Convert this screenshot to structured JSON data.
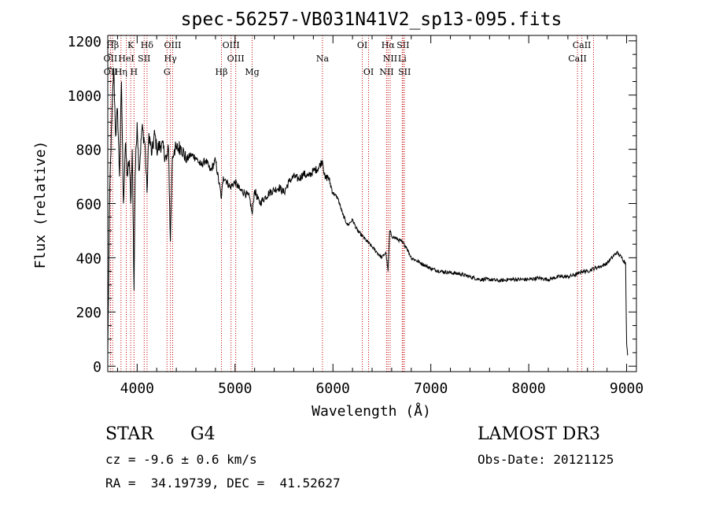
{
  "chart_data": {
    "type": "line",
    "title": "spec-56257-VB031N41V2_sp13-095.fits",
    "xlabel": "Wavelength (Å)",
    "ylabel": "Flux (relative)",
    "xlim": [
      3700,
      9100
    ],
    "ylim": [
      -20,
      1220
    ],
    "x_ticks": [
      4000,
      5000,
      6000,
      7000,
      8000,
      9000
    ],
    "y_ticks": [
      0,
      200,
      400,
      600,
      800,
      1000,
      1200
    ],
    "grid": false,
    "series": [
      {
        "name": "flux",
        "x": [
          3700,
          3720,
          3740,
          3760,
          3780,
          3800,
          3820,
          3840,
          3860,
          3880,
          3900,
          3920,
          3935,
          3950,
          3968,
          3980,
          4000,
          4020,
          4050,
          4080,
          4101,
          4120,
          4150,
          4180,
          4200,
          4250,
          4300,
          4320,
          4340,
          4360,
          4380,
          4400,
          4450,
          4500,
          4550,
          4600,
          4650,
          4700,
          4750,
          4800,
          4861,
          4880,
          4900,
          4950,
          5000,
          5050,
          5100,
          5150,
          5175,
          5200,
          5250,
          5300,
          5350,
          5400,
          5450,
          5500,
          5550,
          5600,
          5650,
          5700,
          5750,
          5800,
          5850,
          5893,
          5920,
          5950,
          6000,
          6050,
          6100,
          6150,
          6200,
          6250,
          6300,
          6350,
          6400,
          6450,
          6500,
          6540,
          6563,
          6580,
          6600,
          6650,
          6700,
          6750,
          6800,
          6850,
          6900,
          6950,
          7000,
          7100,
          7200,
          7300,
          7400,
          7500,
          7600,
          7700,
          7800,
          7900,
          8000,
          8100,
          8200,
          8300,
          8400,
          8500,
          8542,
          8600,
          8662,
          8700,
          8750,
          8800,
          8850,
          8900,
          8950,
          8990,
          9000,
          9010
        ],
        "y": [
          50,
          650,
          900,
          1100,
          850,
          950,
          700,
          1050,
          600,
          820,
          700,
          760,
          600,
          800,
          280,
          700,
          900,
          720,
          880,
          820,
          640,
          860,
          780,
          860,
          800,
          820,
          760,
          800,
          460,
          770,
          800,
          800,
          810,
          760,
          780,
          770,
          740,
          760,
          720,
          760,
          620,
          700,
          690,
          660,
          680,
          650,
          640,
          620,
          560,
          650,
          600,
          620,
          640,
          650,
          660,
          640,
          680,
          700,
          690,
          710,
          700,
          720,
          730,
          760,
          690,
          700,
          640,
          620,
          560,
          520,
          540,
          500,
          480,
          460,
          440,
          420,
          400,
          420,
          350,
          500,
          480,
          470,
          460,
          440,
          400,
          390,
          380,
          370,
          360,
          350,
          345,
          340,
          330,
          320,
          320,
          315,
          320,
          320,
          320,
          325,
          320,
          330,
          330,
          340,
          350,
          350,
          360,
          365,
          370,
          380,
          400,
          420,
          400,
          380,
          80,
          40
        ]
      }
    ],
    "lines": [
      {
        "label": "Hβ",
        "x": 3750
      },
      {
        "label": "K",
        "x": 3934
      },
      {
        "label": "Hδ",
        "x": 4101
      },
      {
        "label": "OIII",
        "x": 4363
      },
      {
        "label": "OIII",
        "x": 4959
      },
      {
        "label": "OI",
        "x": 6300
      },
      {
        "label": "Hα",
        "x": 6563
      },
      {
        "label": "SII",
        "x": 6716
      },
      {
        "label": "CaII",
        "x": 8542
      },
      {
        "label": "OII",
        "x": 3727
      },
      {
        "label": "HeI",
        "x": 3889
      },
      {
        "label": "SII",
        "x": 4072
      },
      {
        "label": "Hγ",
        "x": 4340
      },
      {
        "label": "OIII",
        "x": 5007
      },
      {
        "label": "Na",
        "x": 5893
      },
      {
        "label": "NII",
        "x": 6584
      },
      {
        "label": "Li",
        "x": 6708
      },
      {
        "label": "CaII",
        "x": 8498
      },
      {
        "label": "OII",
        "x": 3729
      },
      {
        "label": "Hη",
        "x": 3835
      },
      {
        "label": "H",
        "x": 3968
      },
      {
        "label": "G",
        "x": 4305
      },
      {
        "label": "Hβ",
        "x": 4861
      },
      {
        "label": "Mg",
        "x": 5175
      },
      {
        "label": "OI",
        "x": 6364
      },
      {
        "label": "NII",
        "x": 6548
      },
      {
        "label": "SII",
        "x": 6731
      },
      {
        "label": "CaII",
        "x": 8662
      }
    ]
  },
  "info": {
    "object_class": "STAR",
    "subclass": "G4",
    "survey": "LAMOST DR3",
    "cz": "cz = -9.6 ± 0.6 km/s",
    "obs_date": "Obs-Date: 20121125",
    "coords": "RA =  34.19739, DEC =  41.52627"
  }
}
